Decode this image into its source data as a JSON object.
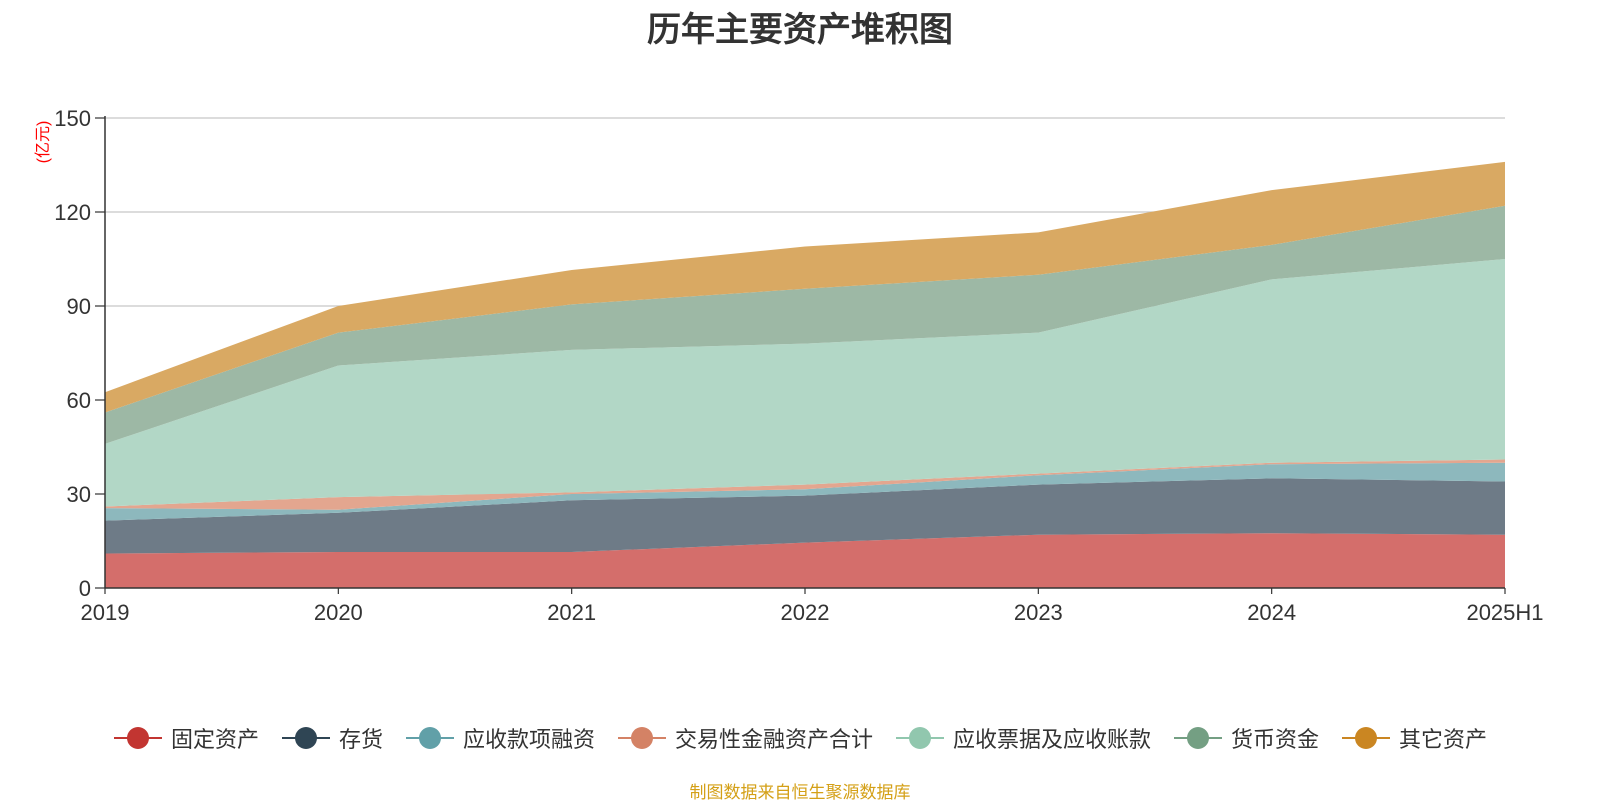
{
  "title": "历年主要资产堆积图",
  "source_note": "制图数据来自恒生聚源数据库",
  "chart_data": {
    "type": "area",
    "stacked": true,
    "title": "历年主要资产堆积图",
    "y_unit": "(亿元)",
    "categories": [
      "2019",
      "2020",
      "2021",
      "2022",
      "2023",
      "2024",
      "2025H1"
    ],
    "ylim": [
      0,
      150
    ],
    "yticks": [
      0,
      30,
      60,
      90,
      120,
      150
    ],
    "grid": true,
    "legend_position": "bottom",
    "series": [
      {
        "name": "固定资产",
        "color": "#c23531",
        "fill": "#d46e6b",
        "values": [
          11,
          11.5,
          11.5,
          14.5,
          17,
          17.5,
          17
        ]
      },
      {
        "name": "存货",
        "color": "#2f4554",
        "fill": "#6e7b87",
        "values": [
          10.5,
          12.5,
          16.5,
          15,
          16,
          17.5,
          17
        ]
      },
      {
        "name": "应收款项融资",
        "color": "#61a0a8",
        "fill": "#8db8bd",
        "values": [
          4,
          1,
          2,
          2,
          3,
          4.5,
          6
        ]
      },
      {
        "name": "交易性金融资产合计",
        "color": "#d48265",
        "fill": "#e3a68f",
        "values": [
          0.5,
          4,
          0.5,
          1.5,
          0.5,
          0.5,
          1
        ]
      },
      {
        "name": "应收票据及应收账款",
        "color": "#91c7ae",
        "fill": "#b2d7c6",
        "values": [
          20,
          42,
          45.5,
          45,
          45,
          58.5,
          64
        ]
      },
      {
        "name": "货币资金",
        "color": "#749f83",
        "fill": "#9db8a5",
        "values": [
          10,
          10.5,
          14.5,
          17.5,
          18.5,
          11,
          17
        ]
      },
      {
        "name": "其它资产",
        "color": "#ca8622",
        "fill": "#d9a963",
        "values": [
          6.5,
          8.5,
          11,
          13.5,
          13.5,
          17.5,
          14
        ]
      }
    ]
  }
}
